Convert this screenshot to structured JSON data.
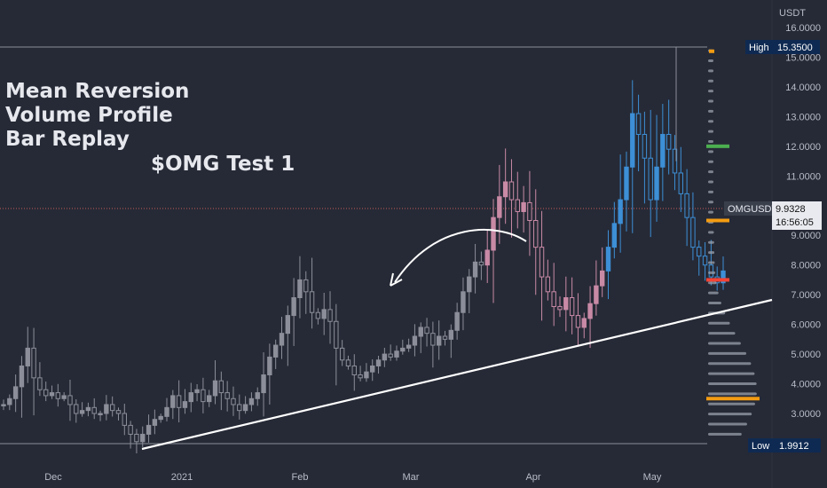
{
  "chart_data": {
    "type": "candlestick",
    "symbol": "OMGUSDT",
    "currency": "USDT",
    "annotation_lines": [
      "Mean Reversion",
      "Volume Profile",
      "Bar Replay"
    ],
    "annotation_subtitle": "$OMG Test 1",
    "y_axis_ticks": [
      "16.0000",
      "15.0000",
      "14.0000",
      "13.0000",
      "12.0000",
      "11.0000",
      "10.0000",
      "9.0000",
      "8.0000",
      "7.0000",
      "6.0000",
      "5.0000",
      "4.0000",
      "3.0000"
    ],
    "x_axis_ticks": [
      "Dec",
      "2021",
      "Feb",
      "Mar",
      "Apr",
      "May"
    ],
    "high": {
      "label": "High",
      "value": "15.3500"
    },
    "low": {
      "label": "Low",
      "value": "1.9912"
    },
    "last_price": {
      "symbol": "OMGUSDT",
      "value": "9.9328",
      "countdown": "16:56:05"
    },
    "price_path": [
      3.3,
      3.5,
      3.9,
      4.6,
      5.2,
      4.2,
      3.8,
      3.6,
      3.7,
      3.5,
      3.6,
      3.3,
      3.0,
      3.1,
      3.2,
      3.0,
      3.0,
      3.3,
      3.1,
      3.0,
      2.6,
      2.3,
      2.05,
      2.3,
      2.6,
      2.8,
      2.9,
      3.2,
      3.6,
      3.2,
      3.4,
      3.7,
      3.8,
      3.4,
      3.6,
      4.1,
      3.7,
      3.5,
      3.3,
      3.1,
      3.3,
      3.5,
      3.7,
      4.3,
      4.9,
      5.3,
      5.7,
      6.3,
      6.9,
      7.5,
      7.1,
      6.4,
      6.2,
      6.5,
      6.1,
      5.2,
      4.8,
      4.6,
      4.3,
      4.2,
      4.4,
      4.6,
      4.8,
      5.0,
      4.9,
      5.1,
      5.2,
      5.3,
      5.6,
      5.9,
      5.7,
      5.3,
      5.6,
      5.5,
      5.8,
      6.4,
      7.1,
      7.6,
      8.1,
      8.0,
      8.5,
      9.6,
      10.3,
      10.8,
      10.2,
      9.8,
      10.1,
      9.5,
      8.6,
      7.6,
      7.1,
      6.6,
      6.5,
      6.9,
      6.3,
      5.9,
      6.2,
      6.7,
      7.3,
      7.8,
      8.6,
      9.4,
      10.2,
      11.3,
      13.1,
      12.4,
      11.6,
      10.2,
      11.3,
      12.4,
      11.9,
      11.1,
      10.4,
      9.6,
      8.6,
      8.3,
      8.0,
      7.6,
      7.4,
      7.8
    ],
    "color_segments": {
      "gray_until": 80,
      "pink_until": 100,
      "blue_from": 100
    },
    "trendline": {
      "start": [
        "2021-11-22",
        1.95
      ],
      "end": [
        "2021-05-23",
        7.0
      ]
    },
    "volume_profile": {
      "poc_price": 3.5,
      "value_area_colors": {
        "high_marker": "#4caf50",
        "low_marker": "#f44336",
        "poc": "#f39c12"
      },
      "markers": [
        {
          "price": 15.2,
          "color": "#f39c12"
        },
        {
          "price": 12.0,
          "color": "#4caf50"
        },
        {
          "price": 9.5,
          "color": "#f39c12"
        },
        {
          "price": 7.5,
          "color": "#f44336"
        },
        {
          "price": 3.5,
          "color": "#f39c12"
        }
      ]
    },
    "colors": {
      "gray": "#8c8f99",
      "pink": "#c98aa6",
      "blue": "#3d8fd6",
      "trend": "#ffffff",
      "hiline": "#9a9ea8"
    }
  }
}
